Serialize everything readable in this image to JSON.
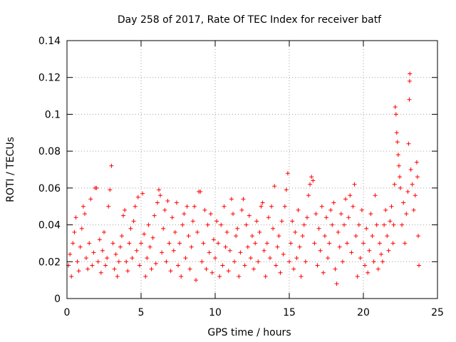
{
  "chart_data": {
    "type": "scatter",
    "title": "Day 258 of 2017, Rate Of TEC Index for receiver batf",
    "xlabel": "GPS time / hours",
    "ylabel": "ROTI / TECUs",
    "xlim": [
      0,
      25
    ],
    "ylim": [
      0,
      0.14
    ],
    "x_ticks": [
      0,
      5,
      10,
      15,
      20,
      25
    ],
    "y_ticks": [
      0,
      0.02,
      0.04,
      0.06,
      0.08,
      0.1,
      0.12,
      0.14
    ],
    "x_tick_labels": [
      "0",
      "5",
      "10",
      "15",
      "20",
      "25"
    ],
    "y_tick_labels": [
      "0",
      "0.02",
      "0.04",
      "0.06",
      "0.08",
      "0.1",
      "0.12",
      "0.14"
    ],
    "grid": true,
    "marker": "plus",
    "series": [
      {
        "name": "ROTI",
        "color": "#ff0000",
        "points": [
          [
            0.1,
            0.018
          ],
          [
            0.2,
            0.024
          ],
          [
            0.3,
            0.012
          ],
          [
            0.4,
            0.03
          ],
          [
            0.5,
            0.036
          ],
          [
            0.6,
            0.044
          ],
          [
            0.7,
            0.02
          ],
          [
            0.8,
            0.015
          ],
          [
            0.9,
            0.028
          ],
          [
            1.0,
            0.038
          ],
          [
            1.1,
            0.05
          ],
          [
            1.2,
            0.046
          ],
          [
            1.3,
            0.022
          ],
          [
            1.4,
            0.016
          ],
          [
            1.5,
            0.03
          ],
          [
            1.6,
            0.054
          ],
          [
            1.7,
            0.018
          ],
          [
            1.8,
            0.025
          ],
          [
            1.9,
            0.06
          ],
          [
            2.0,
            0.06
          ],
          [
            2.1,
            0.02
          ],
          [
            2.2,
            0.032
          ],
          [
            2.3,
            0.014
          ],
          [
            2.4,
            0.026
          ],
          [
            2.5,
            0.036
          ],
          [
            2.6,
            0.018
          ],
          [
            2.7,
            0.022
          ],
          [
            2.8,
            0.05
          ],
          [
            2.9,
            0.059
          ],
          [
            3.0,
            0.072
          ],
          [
            3.1,
            0.03
          ],
          [
            3.2,
            0.016
          ],
          [
            3.3,
            0.024
          ],
          [
            3.4,
            0.012
          ],
          [
            3.5,
            0.02
          ],
          [
            3.6,
            0.028
          ],
          [
            3.7,
            0.034
          ],
          [
            3.8,
            0.045
          ],
          [
            3.9,
            0.048
          ],
          [
            4.0,
            0.02
          ],
          [
            4.1,
            0.015
          ],
          [
            4.2,
            0.03
          ],
          [
            4.3,
            0.038
          ],
          [
            4.4,
            0.022
          ],
          [
            4.5,
            0.042
          ],
          [
            4.6,
            0.05
          ],
          [
            4.7,
            0.026
          ],
          [
            4.8,
            0.055
          ],
          [
            4.9,
            0.018
          ],
          [
            5.0,
            0.03
          ],
          [
            5.1,
            0.057
          ],
          [
            5.2,
            0.035
          ],
          [
            5.3,
            0.012
          ],
          [
            5.4,
            0.022
          ],
          [
            5.5,
            0.04
          ],
          [
            5.6,
            0.028
          ],
          [
            5.7,
            0.016
          ],
          [
            5.8,
            0.033
          ],
          [
            5.9,
            0.045
          ],
          [
            6.0,
            0.019
          ],
          [
            6.1,
            0.052
          ],
          [
            6.2,
            0.059
          ],
          [
            6.3,
            0.056
          ],
          [
            6.4,
            0.025
          ],
          [
            6.5,
            0.038
          ],
          [
            6.6,
            0.048
          ],
          [
            6.7,
            0.02
          ],
          [
            6.8,
            0.053
          ],
          [
            6.9,
            0.03
          ],
          [
            7.0,
            0.015
          ],
          [
            7.1,
            0.044
          ],
          [
            7.2,
            0.026
          ],
          [
            7.3,
            0.036
          ],
          [
            7.4,
            0.052
          ],
          [
            7.5,
            0.018
          ],
          [
            7.6,
            0.03
          ],
          [
            7.7,
            0.012
          ],
          [
            7.8,
            0.04
          ],
          [
            7.9,
            0.046
          ],
          [
            8.0,
            0.022
          ],
          [
            8.1,
            0.05
          ],
          [
            8.2,
            0.034
          ],
          [
            8.3,
            0.016
          ],
          [
            8.4,
            0.028
          ],
          [
            8.5,
            0.042
          ],
          [
            8.6,
            0.05
          ],
          [
            8.7,
            0.01
          ],
          [
            8.8,
            0.036
          ],
          [
            8.9,
            0.058
          ],
          [
            9.0,
            0.058
          ],
          [
            9.1,
            0.02
          ],
          [
            9.2,
            0.03
          ],
          [
            9.3,
            0.048
          ],
          [
            9.4,
            0.016
          ],
          [
            9.5,
            0.04
          ],
          [
            9.6,
            0.025
          ],
          [
            9.7,
            0.046
          ],
          [
            9.8,
            0.014
          ],
          [
            9.9,
            0.032
          ],
          [
            10.0,
            0.022
          ],
          [
            10.1,
            0.042
          ],
          [
            10.2,
            0.03
          ],
          [
            10.3,
            0.012
          ],
          [
            10.4,
            0.04
          ],
          [
            10.5,
            0.018
          ],
          [
            10.6,
            0.05
          ],
          [
            10.7,
            0.028
          ],
          [
            10.8,
            0.036
          ],
          [
            10.9,
            0.015
          ],
          [
            11.0,
            0.026
          ],
          [
            11.1,
            0.054
          ],
          [
            11.2,
            0.046
          ],
          [
            11.3,
            0.02
          ],
          [
            11.4,
            0.034
          ],
          [
            11.5,
            0.038
          ],
          [
            11.6,
            0.012
          ],
          [
            11.7,
            0.025
          ],
          [
            11.8,
            0.048
          ],
          [
            11.9,
            0.054
          ],
          [
            12.0,
            0.018
          ],
          [
            12.1,
            0.04
          ],
          [
            12.2,
            0.028
          ],
          [
            12.3,
            0.045
          ],
          [
            12.4,
            0.022
          ],
          [
            12.5,
            0.034
          ],
          [
            12.6,
            0.016
          ],
          [
            12.7,
            0.03
          ],
          [
            12.8,
            0.042
          ],
          [
            12.9,
            0.02
          ],
          [
            13.0,
            0.036
          ],
          [
            13.1,
            0.05
          ],
          [
            13.2,
            0.052
          ],
          [
            13.3,
            0.026
          ],
          [
            13.4,
            0.012
          ],
          [
            13.5,
            0.03
          ],
          [
            13.6,
            0.044
          ],
          [
            13.7,
            0.022
          ],
          [
            13.8,
            0.05
          ],
          [
            13.9,
            0.038
          ],
          [
            14.0,
            0.061
          ],
          [
            14.1,
            0.018
          ],
          [
            14.2,
            0.028
          ],
          [
            14.3,
            0.034
          ],
          [
            14.4,
            0.014
          ],
          [
            14.5,
            0.042
          ],
          [
            14.6,
            0.024
          ],
          [
            14.7,
            0.05
          ],
          [
            14.8,
            0.059
          ],
          [
            14.9,
            0.068
          ],
          [
            15.0,
            0.02
          ],
          [
            15.1,
            0.03
          ],
          [
            15.2,
            0.042
          ],
          [
            15.3,
            0.016
          ],
          [
            15.4,
            0.036
          ],
          [
            15.5,
            0.022
          ],
          [
            15.6,
            0.048
          ],
          [
            15.7,
            0.028
          ],
          [
            15.8,
            0.012
          ],
          [
            15.9,
            0.034
          ],
          [
            16.0,
            0.04
          ],
          [
            16.1,
            0.02
          ],
          [
            16.2,
            0.044
          ],
          [
            16.3,
            0.056
          ],
          [
            16.4,
            0.062
          ],
          [
            16.5,
            0.066
          ],
          [
            16.6,
            0.064
          ],
          [
            16.7,
            0.03
          ],
          [
            16.8,
            0.046
          ],
          [
            16.9,
            0.018
          ],
          [
            17.0,
            0.038
          ],
          [
            17.1,
            0.026
          ],
          [
            17.2,
            0.05
          ],
          [
            17.3,
            0.014
          ],
          [
            17.4,
            0.034
          ],
          [
            17.5,
            0.044
          ],
          [
            17.6,
            0.022
          ],
          [
            17.7,
            0.03
          ],
          [
            17.8,
            0.048
          ],
          [
            17.9,
            0.04
          ],
          [
            18.0,
            0.052
          ],
          [
            18.1,
            0.016
          ],
          [
            18.2,
            0.008
          ],
          [
            18.3,
            0.036
          ],
          [
            18.4,
            0.028
          ],
          [
            18.5,
            0.046
          ],
          [
            18.6,
            0.02
          ],
          [
            18.7,
            0.04
          ],
          [
            18.8,
            0.054
          ],
          [
            18.9,
            0.03
          ],
          [
            19.0,
            0.044
          ],
          [
            19.1,
            0.056
          ],
          [
            19.2,
            0.025
          ],
          [
            19.3,
            0.05
          ],
          [
            19.4,
            0.062
          ],
          [
            19.5,
            0.034
          ],
          [
            19.6,
            0.012
          ],
          [
            19.7,
            0.04
          ],
          [
            19.8,
            0.022
          ],
          [
            19.9,
            0.048
          ],
          [
            20.0,
            0.03
          ],
          [
            20.1,
            0.018
          ],
          [
            20.2,
            0.038
          ],
          [
            20.3,
            0.014
          ],
          [
            20.4,
            0.026
          ],
          [
            20.5,
            0.046
          ],
          [
            20.6,
            0.034
          ],
          [
            20.7,
            0.02
          ],
          [
            20.8,
            0.056
          ],
          [
            20.9,
            0.04
          ],
          [
            21.0,
            0.016
          ],
          [
            21.1,
            0.03
          ],
          [
            21.2,
            0.024
          ],
          [
            21.3,
            0.02
          ],
          [
            21.4,
            0.04
          ],
          [
            21.5,
            0.048
          ],
          [
            21.6,
            0.034
          ],
          [
            21.7,
            0.026
          ],
          [
            21.8,
            0.042
          ],
          [
            21.9,
            0.05
          ],
          [
            22.0,
            0.03
          ],
          [
            22.05,
            0.04
          ],
          [
            22.1,
            0.062
          ],
          [
            22.15,
            0.104
          ],
          [
            22.2,
            0.1
          ],
          [
            22.25,
            0.09
          ],
          [
            22.3,
            0.085
          ],
          [
            22.35,
            0.078
          ],
          [
            22.4,
            0.072
          ],
          [
            22.45,
            0.066
          ],
          [
            22.5,
            0.06
          ],
          [
            22.6,
            0.04
          ],
          [
            22.7,
            0.052
          ],
          [
            22.8,
            0.03
          ],
          [
            22.9,
            0.046
          ],
          [
            23.0,
            0.058
          ],
          [
            23.05,
            0.084
          ],
          [
            23.1,
            0.108
          ],
          [
            23.12,
            0.118
          ],
          [
            23.14,
            0.122
          ],
          [
            23.2,
            0.07
          ],
          [
            23.3,
            0.062
          ],
          [
            23.4,
            0.048
          ],
          [
            23.5,
            0.056
          ],
          [
            23.6,
            0.074
          ],
          [
            23.65,
            0.066
          ],
          [
            23.7,
            0.034
          ],
          [
            23.75,
            0.018
          ]
        ]
      }
    ]
  }
}
